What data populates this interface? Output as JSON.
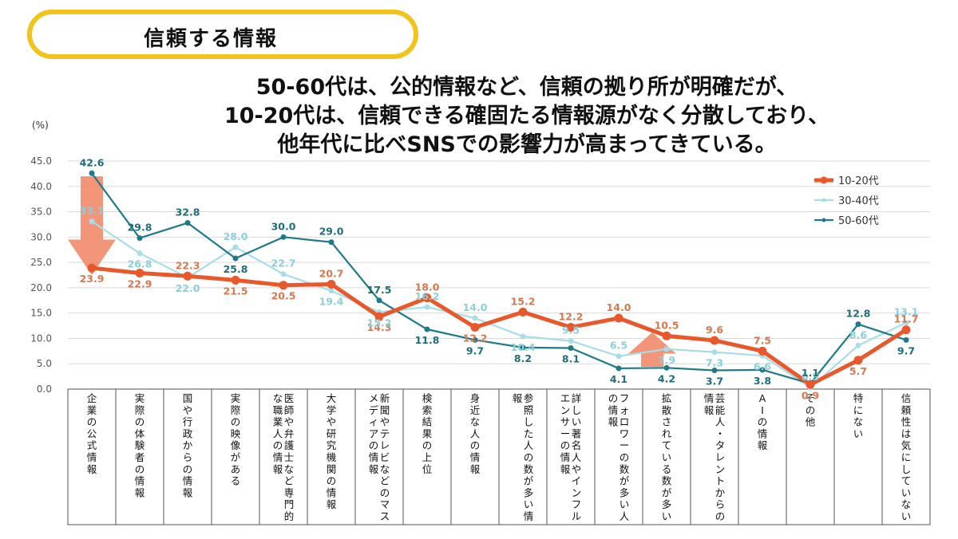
{
  "header": {
    "badge_label": "信頼する情報"
  },
  "headline": {
    "lines": [
      "50-60代は、公的情報など、信頼の拠り所が明確だが、",
      "10-20代は、信頼できる確固たる情報源がなく分散しており、",
      "他年代に比べSNSでの影響力が高まってきている。"
    ]
  },
  "chart_data": {
    "type": "line",
    "ylabel": "(%)",
    "ylim": [
      0,
      45
    ],
    "yticks": [
      "0.0",
      "5.0",
      "10.0",
      "15.0",
      "20.0",
      "25.0",
      "30.0",
      "35.0",
      "40.0",
      "45.0"
    ],
    "grid": true,
    "legend_position": "top-right",
    "categories": [
      "企業の公式情報",
      "実際の体験者の情報",
      "国や行政からの情報",
      "実際の映像がある",
      "医師や弁護士など専門的な職業人の情報",
      "大学や研究機関の情報",
      "新聞やテレビなどのマスメディアの情報",
      "検索結果の上位",
      "身近な人の情報",
      "参照した人の数が多い情報",
      "詳しい著名人やインフルエンサーの情報",
      "フォロワーの数が多い人の情報",
      "拡散されている数が多い",
      "芸能人・タレントからの情報",
      "AIの情報",
      "その他",
      "特にない",
      "信頼性は気にしていない"
    ],
    "series": [
      {
        "name": "10-20代",
        "color": "#e8582a",
        "values": [
          23.9,
          22.9,
          22.3,
          21.5,
          20.5,
          20.7,
          14.3,
          18.0,
          12.2,
          15.2,
          12.2,
          14.0,
          10.5,
          9.6,
          7.5,
          0.9,
          5.7,
          11.7
        ],
        "labels": [
          "23.9",
          "22.9",
          "22.3",
          "21.5",
          "20.5",
          "20.7",
          "14.3",
          "18.0",
          "12.2",
          "15.2",
          "12.2",
          "14.0",
          "10.5",
          "9.6",
          "7.5",
          "0.9",
          "5.7",
          "11.7"
        ]
      },
      {
        "name": "30-40代",
        "color": "#a8dde8",
        "values": [
          33.1,
          26.8,
          22.0,
          28.0,
          22.7,
          19.4,
          15.2,
          16.2,
          14.0,
          10.4,
          9.5,
          6.5,
          7.9,
          7.3,
          6.6,
          0.3,
          8.6,
          13.1
        ],
        "labels": [
          "33.1",
          "26.8",
          "22.0",
          "28.0",
          "22.7",
          "19.4",
          "15.2",
          "16.2",
          "14.0",
          "10.4",
          "9.5",
          "6.5",
          "7.9",
          "7.3",
          "6.6",
          "0.3",
          "8.6",
          "13.1"
        ]
      },
      {
        "name": "50-60代",
        "color": "#1e7a86",
        "values": [
          42.6,
          29.8,
          32.8,
          25.8,
          30.0,
          29.0,
          17.5,
          11.8,
          9.7,
          8.2,
          8.1,
          4.1,
          4.2,
          3.7,
          3.8,
          1.1,
          12.8,
          9.7
        ],
        "labels": [
          "42.6",
          "29.8",
          "32.8",
          "25.8",
          "30.0",
          "29.0",
          "17.5",
          "11.8",
          "9.7",
          "8.2",
          "8.1",
          "4.1",
          "4.2",
          "3.7",
          "3.8",
          "1.1",
          "12.8",
          "9.7"
        ]
      }
    ],
    "annotations": [
      {
        "type": "arrow-down",
        "color": "#f28a6a",
        "at": "企業の公式情報"
      },
      {
        "type": "arrow-up",
        "color": "#f28a6a",
        "at": "フォロワーの数が多い人の情報"
      }
    ]
  }
}
